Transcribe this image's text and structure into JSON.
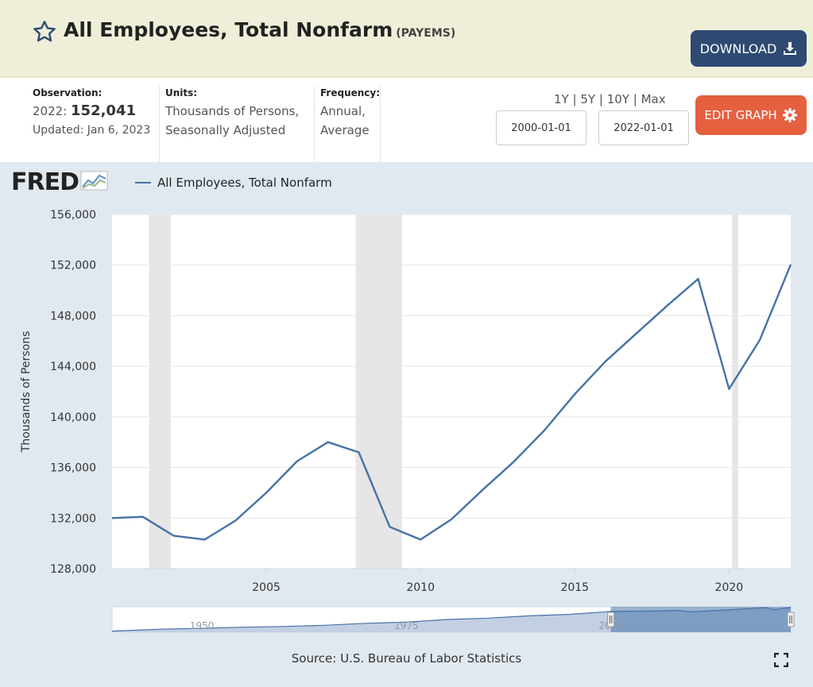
{
  "header": {
    "title": "All Employees, Total Nonfarm",
    "series_id": "(PAYEMS)",
    "download_label": "DOWNLOAD",
    "star_icon": "star-outline-icon",
    "download_icon": "download-icon"
  },
  "info": {
    "observation_label": "Observation:",
    "observation_year": "2022:",
    "observation_value": "152,041",
    "updated": "Updated: Jan 6, 2023",
    "units_label": "Units:",
    "units_line1": "Thousands of Persons,",
    "units_line2": "Seasonally Adjusted",
    "frequency_label": "Frequency:",
    "frequency_line1": "Annual,",
    "frequency_line2": "Average",
    "range_1y": "1Y",
    "range_5y": "5Y",
    "range_10y": "10Y",
    "range_max": "Max",
    "range_sep": "|",
    "start_date": "2000-01-01",
    "end_date": "2022-01-01",
    "edit_label": "EDIT GRAPH",
    "edit_icon": "gear-icon"
  },
  "chart_data": {
    "type": "line",
    "logo": "FRED",
    "legend": "All Employees, Total Nonfarm",
    "ylabel": "Thousands of Persons",
    "source": "Source: U.S. Bureau of Labor Statistics",
    "x_start": 2000,
    "x_end": 2022,
    "ylim": [
      128000,
      156000
    ],
    "yticks": [
      128000,
      132000,
      136000,
      140000,
      144000,
      148000,
      152000,
      156000
    ],
    "ytick_labels": [
      "128,000",
      "132,000",
      "136,000",
      "140,000",
      "144,000",
      "148,000",
      "152,000",
      "156,000"
    ],
    "xticks": [
      2005,
      2010,
      2015,
      2020
    ],
    "xtick_labels": [
      "2005",
      "2010",
      "2015",
      "2020"
    ],
    "recessions": [
      [
        2001.2,
        2001.9
      ],
      [
        2007.9,
        2009.4
      ],
      [
        2020.1,
        2020.3
      ]
    ],
    "series": [
      {
        "color": "#4572a7",
        "x": [
          2000,
          2001,
          2002,
          2003,
          2004,
          2005,
          2006,
          2007,
          2008,
          2009,
          2010,
          2011,
          2012,
          2013,
          2014,
          2015,
          2016,
          2017,
          2018,
          2019,
          2020,
          2021,
          2022
        ],
        "values": [
          132000,
          132100,
          130600,
          130300,
          131800,
          134000,
          136500,
          138000,
          137200,
          131300,
          130300,
          131900,
          134200,
          136400,
          138900,
          141800,
          144400,
          146600,
          148800,
          150900,
          142200,
          146100,
          152041
        ]
      }
    ],
    "navigator": {
      "tick_labels": [
        "1950",
        "1975",
        "2000"
      ],
      "tick_years": [
        1950,
        1975,
        2000
      ],
      "x_start": 1939,
      "x_end": 2022,
      "ylim": [
        25000,
        156000
      ],
      "x": [
        1939,
        1945,
        1950,
        1955,
        1960,
        1965,
        1970,
        1975,
        1980,
        1985,
        1990,
        1995,
        2000,
        2005,
        2008,
        2010,
        2015,
        2019,
        2020,
        2022
      ],
      "values": [
        30600,
        40400,
        45200,
        50700,
        54300,
        60800,
        71000,
        77100,
        90500,
        97500,
        109500,
        117300,
        132000,
        134000,
        137200,
        130300,
        141800,
        150900,
        142200,
        152041
      ],
      "window_start": 2000,
      "window_end": 2022
    }
  }
}
